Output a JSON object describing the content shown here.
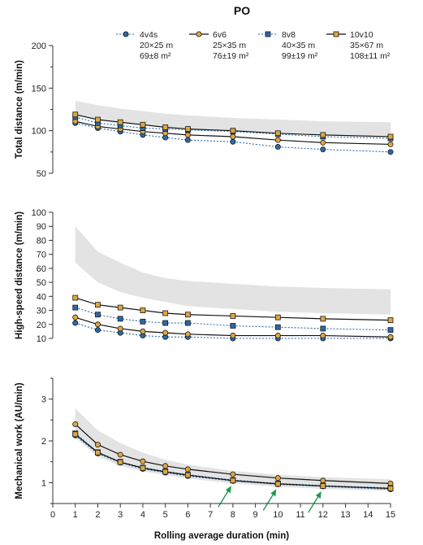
{
  "chart_data": {
    "type": "line",
    "title": "PO",
    "xlabel": "Rolling average duration (min)",
    "x_ticks": [
      0,
      1,
      2,
      3,
      4,
      5,
      6,
      7,
      8,
      9,
      10,
      11,
      12,
      13,
      14,
      15
    ],
    "x": [
      1,
      2,
      3,
      4,
      5,
      6,
      8,
      10,
      12,
      15
    ],
    "legend": [
      {
        "id": "4v4s",
        "name": "4v4s",
        "line1": "20×25 m",
        "line2": "69±8 m²",
        "color": "#2a6aa8",
        "marker": "circle",
        "dash": "dotted"
      },
      {
        "id": "6v6",
        "name": "6v6",
        "line1": "25×35 m",
        "line2": "76±19 m²",
        "color": "#e0a640",
        "marker": "circle",
        "dash": "solid"
      },
      {
        "id": "8v8",
        "name": "8v8",
        "line1": "40×35 m",
        "line2": "99±19 m²",
        "color": "#2a6aa8",
        "marker": "square",
        "dash": "dotted"
      },
      {
        "id": "10v10",
        "name": "10v10",
        "line1": "35×67 m",
        "line2": "108±11 m²",
        "color": "#e0a640",
        "marker": "square",
        "dash": "solid"
      }
    ],
    "panels": [
      {
        "ylabel": "Total distance (m/min)",
        "ylim": [
          50,
          200
        ],
        "yticks": [
          50,
          100,
          150,
          200
        ],
        "minor_yticks": [
          75,
          125,
          175
        ],
        "band": {
          "x": [
            1,
            2,
            3,
            4,
            5,
            6,
            8,
            10,
            12,
            15
          ],
          "upper": [
            135,
            130,
            126,
            123,
            120,
            118,
            115,
            113,
            111,
            110
          ],
          "lower": [
            118,
            112,
            108,
            106,
            104,
            102,
            100,
            98,
            96,
            94
          ]
        },
        "series": [
          {
            "legend": "4v4s",
            "values": [
              109,
              103,
              99,
              95,
              92,
              89,
              87,
              81,
              78,
              75
            ]
          },
          {
            "legend": "6v6",
            "values": [
              111,
              105,
              102,
              99,
              97,
              95,
              93,
              89,
              86,
              84
            ]
          },
          {
            "legend": "8v8",
            "values": [
              116,
              109,
              106,
              103,
              102,
              101,
              99,
              96,
              93,
              91
            ]
          },
          {
            "legend": "10v10",
            "values": [
              119,
              113,
              110,
              107,
              104,
              102,
              100,
              97,
              95,
              93
            ]
          }
        ]
      },
      {
        "ylabel": "High-speed distance (m/min)",
        "ylim": [
          10,
          100
        ],
        "yticks": [
          10,
          20,
          30,
          40,
          50,
          60,
          70,
          80,
          90,
          100
        ],
        "minor_yticks": [],
        "band": {
          "x": [
            1,
            2,
            3,
            4,
            5,
            6,
            8,
            10,
            12,
            15
          ],
          "upper": [
            90,
            72,
            64,
            57,
            53,
            51,
            49,
            47,
            46,
            45
          ],
          "lower": [
            64,
            50,
            43,
            39,
            36,
            33,
            31,
            29,
            28,
            27
          ]
        },
        "series": [
          {
            "legend": "4v4s",
            "values": [
              21,
              16,
              14,
              12,
              11,
              11,
              10,
              10,
              10,
              10
            ]
          },
          {
            "legend": "6v6",
            "values": [
              25,
              20,
              17,
              15,
              14,
              13,
              12,
              12,
              12,
              11
            ]
          },
          {
            "legend": "8v8",
            "values": [
              32,
              27,
              24,
              22,
              21,
              21,
              19,
              18,
              17,
              16
            ]
          },
          {
            "legend": "10v10",
            "values": [
              39,
              34,
              32,
              30,
              28,
              27,
              26,
              25,
              24,
              23
            ]
          }
        ]
      },
      {
        "ylabel": "Mechanical work (AU/min)",
        "ylim": [
          0.5,
          3.5
        ],
        "yticks": [
          1,
          2,
          3
        ],
        "minor_yticks": [
          0.5,
          1.5,
          2.5,
          3.5
        ],
        "band": {
          "x": [
            1,
            2,
            3,
            4,
            5,
            6,
            8,
            10,
            12,
            15
          ],
          "upper": [
            2.78,
            2.25,
            1.95,
            1.72,
            1.55,
            1.43,
            1.28,
            1.19,
            1.13,
            1.08
          ],
          "lower": [
            2.08,
            1.62,
            1.4,
            1.27,
            1.18,
            1.1,
            0.98,
            0.9,
            0.85,
            0.8
          ]
        },
        "series": [
          {
            "legend": "4v4s",
            "values": [
              2.13,
              1.7,
              1.48,
              1.33,
              1.24,
              1.16,
              1.04,
              0.96,
              0.91,
              0.84
            ]
          },
          {
            "legend": "6v6",
            "values": [
              2.4,
              1.91,
              1.67,
              1.51,
              1.4,
              1.32,
              1.2,
              1.11,
              1.05,
              0.98
            ]
          },
          {
            "legend": "8v8",
            "values": [
              2.18,
              1.73,
              1.5,
              1.36,
              1.27,
              1.19,
              1.06,
              0.98,
              0.93,
              0.87
            ]
          },
          {
            "legend": "10v10",
            "values": [
              2.16,
              1.72,
              1.49,
              1.35,
              1.26,
              1.18,
              1.05,
              0.97,
              0.92,
              0.86
            ]
          }
        ],
        "arrows_x": [
          8,
          10,
          12
        ]
      }
    ]
  }
}
